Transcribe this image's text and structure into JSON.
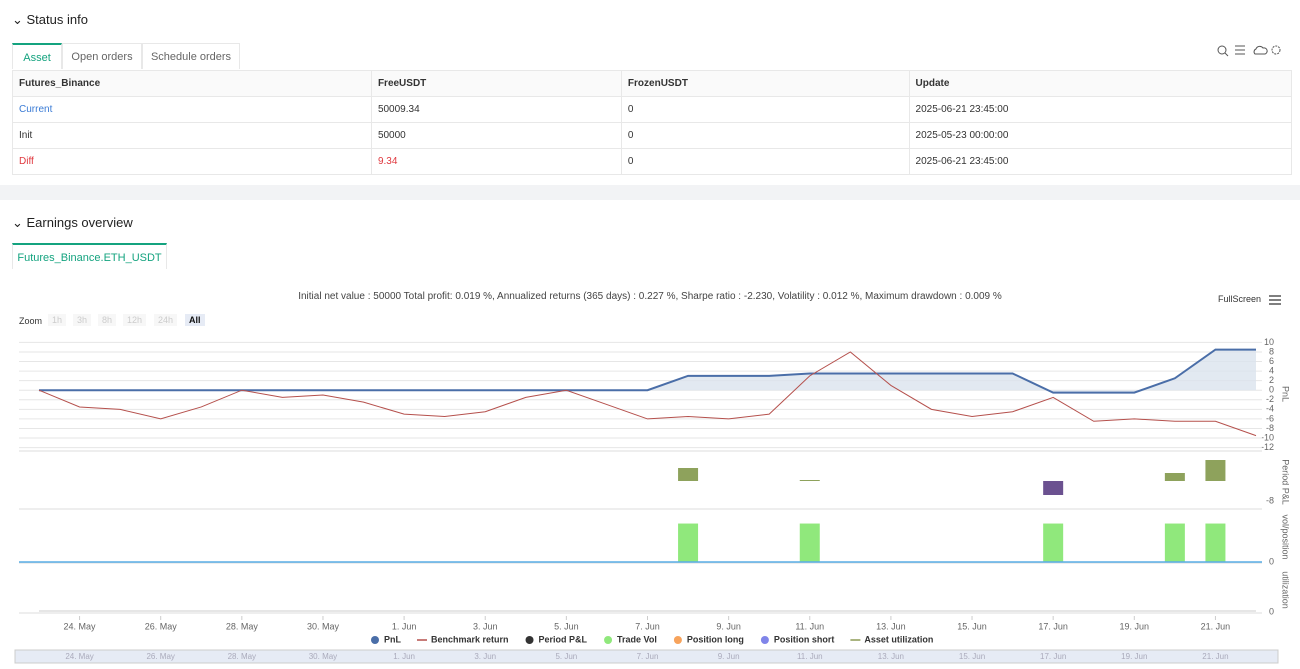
{
  "status": {
    "title": "Status info",
    "tabs": [
      "Asset",
      "Open orders",
      "Schedule orders"
    ],
    "table": {
      "columns": [
        "Futures_Binance",
        "FreeUSDT",
        "FrozenUSDT",
        "Update"
      ],
      "rows": [
        [
          "Current",
          "50009.34",
          "0",
          "2025-06-21 23:45:00"
        ],
        [
          "Init",
          "50000",
          "0",
          "2025-05-23 00:00:00"
        ],
        [
          "Diff",
          "9.34",
          "0",
          "2025-06-21 23:45:00"
        ]
      ]
    }
  },
  "earnings": {
    "title": "Earnings overview",
    "tab": "Futures_Binance.ETH_USDT",
    "summary": "Initial net value : 50000 Total profit: 0.019 %, Annualized returns (365 days) : 0.227 %, Sharpe ratio : -2.230, Volatility : 0.012 %, Maximum drawdown : 0.009 %",
    "fullscreen": "FullScreen",
    "zoom_label": "Zoom",
    "zoom_buttons": [
      "1h",
      "3h",
      "8h",
      "12h",
      "24h",
      "All"
    ]
  },
  "chart_data": {
    "type": "line",
    "x": [
      "2025-05-23",
      "2025-05-24",
      "2025-05-25",
      "2025-05-26",
      "2025-05-27",
      "2025-05-28",
      "2025-05-29",
      "2025-05-30",
      "2025-05-31",
      "2025-06-01",
      "2025-06-02",
      "2025-06-03",
      "2025-06-04",
      "2025-06-05",
      "2025-06-06",
      "2025-06-07",
      "2025-06-08",
      "2025-06-09",
      "2025-06-10",
      "2025-06-11",
      "2025-06-12",
      "2025-06-13",
      "2025-06-14",
      "2025-06-15",
      "2025-06-16",
      "2025-06-17",
      "2025-06-18",
      "2025-06-19",
      "2025-06-20",
      "2025-06-21",
      "2025-06-22"
    ],
    "xlim": [
      "2025-05-23",
      "2025-06-22"
    ],
    "xticks": [
      {
        "value": "2025-05-24",
        "label": "24. May"
      },
      {
        "value": "2025-05-26",
        "label": "26. May"
      },
      {
        "value": "2025-05-28",
        "label": "28. May"
      },
      {
        "value": "2025-05-30",
        "label": "30. May"
      },
      {
        "value": "2025-06-01",
        "label": "1. Jun"
      },
      {
        "value": "2025-06-03",
        "label": "3. Jun"
      },
      {
        "value": "2025-06-05",
        "label": "5. Jun"
      },
      {
        "value": "2025-06-07",
        "label": "7. Jun"
      },
      {
        "value": "2025-06-09",
        "label": "9. Jun"
      },
      {
        "value": "2025-06-11",
        "label": "11. Jun"
      },
      {
        "value": "2025-06-13",
        "label": "13. Jun"
      },
      {
        "value": "2025-06-15",
        "label": "15. Jun"
      },
      {
        "value": "2025-06-17",
        "label": "17. Jun"
      },
      {
        "value": "2025-06-19",
        "label": "19. Jun"
      },
      {
        "value": "2025-06-21",
        "label": "21. Jun"
      }
    ],
    "ylim": [
      -12.5,
      10.5
    ],
    "yticks": [
      10,
      8,
      6,
      4,
      2,
      0,
      -2,
      -4,
      -6,
      -8,
      -10,
      -12
    ],
    "ylabel": "PnL",
    "grid": true,
    "series": [
      {
        "name": "PnL",
        "color": "#4a6ea8",
        "values": [
          0,
          0,
          0,
          0,
          0,
          0,
          0,
          0,
          0,
          0,
          0,
          0,
          0,
          0,
          0,
          0,
          3,
          3,
          3,
          3.5,
          3.5,
          3.5,
          3.5,
          3.5,
          3.5,
          -0.5,
          -0.5,
          -0.5,
          2.5,
          8.5,
          8.5
        ]
      },
      {
        "name": "Benchmark return",
        "color": "#b5504c",
        "values": [
          0,
          -3.5,
          -4,
          -6,
          -3.5,
          0,
          -1.5,
          -1,
          -2.5,
          -5,
          -5.5,
          -4.5,
          -1.5,
          0,
          -3,
          -6,
          -5.5,
          -6,
          -5,
          3,
          8,
          1,
          -4,
          -5.5,
          -4.5,
          -1.5,
          -6.5,
          -6,
          -6.5,
          -6.5,
          -9.5
        ]
      }
    ],
    "period_pnl": {
      "label": "Period P&L",
      "name": "Period P&L",
      "x": [
        "2025-06-08",
        "2025-06-11",
        "2025-06-17",
        "2025-06-20",
        "2025-06-21"
      ],
      "values": [
        5.2,
        0.4,
        -5.6,
        3.2,
        8.4
      ],
      "color": "#8ea25c",
      "negative_color": "#6b5190",
      "ylim": [
        -10.8,
        10
      ],
      "yticks": [
        -8
      ]
    },
    "trade_vol": {
      "label": "vol/position",
      "name": "Trade Vol",
      "x": [
        "2025-06-08",
        "2025-06-11",
        "2025-06-17",
        "2025-06-20",
        "2025-06-21"
      ],
      "values": [
        1,
        1,
        1,
        1,
        1
      ],
      "color": "#90e87c",
      "ylim": [
        0,
        1.3
      ],
      "yticks": [
        0
      ]
    },
    "utilization": {
      "label": "utilization",
      "ylim": [
        0,
        1
      ],
      "yticks": [
        0
      ]
    },
    "extra_legend": [
      {
        "name": "Position long",
        "color": "#f7a35c",
        "marker": "dot"
      },
      {
        "name": "Position short",
        "color": "#8085e9",
        "marker": "dot"
      },
      {
        "name": "Asset utilization",
        "color": "#8d9a55",
        "marker": "line"
      }
    ]
  }
}
